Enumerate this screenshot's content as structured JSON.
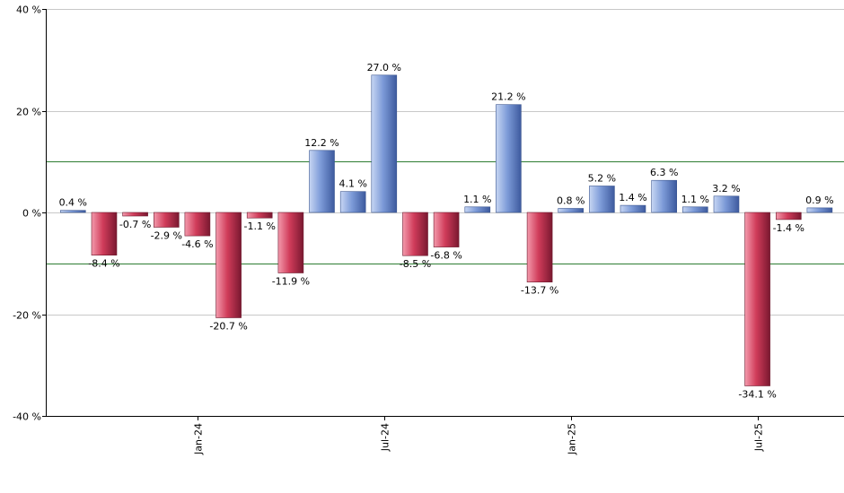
{
  "chart_data": {
    "type": "bar",
    "title": "",
    "xlabel": "",
    "ylabel": "",
    "ylim": [
      -40,
      40
    ],
    "yticks": [
      40,
      20,
      0,
      -20,
      -40
    ],
    "ytick_labels": [
      "40 %",
      "20 %",
      "0 %",
      "-20 %",
      "-40 %"
    ],
    "xtick_labels": [
      {
        "label": "Jan-24",
        "index": 4.5
      },
      {
        "label": "Jul-24",
        "index": 10.5
      },
      {
        "label": "Jan-25",
        "index": 16.5
      },
      {
        "label": "Jul-25",
        "index": 22.5
      }
    ],
    "grid": true,
    "reference_lines": [
      10,
      -10
    ],
    "n_slots": 25,
    "values": [
      0.4,
      -8.4,
      -0.7,
      -2.9,
      -4.6,
      -20.7,
      -1.1,
      -11.9,
      12.2,
      4.1,
      27.0,
      -8.5,
      -6.8,
      1.1,
      21.2,
      -13.7,
      0.8,
      5.2,
      1.4,
      6.3,
      1.1,
      3.2,
      -34.1,
      -1.4,
      0.9
    ],
    "data_labels": [
      "0.4 %",
      "-8.4 %",
      "-0.7 %",
      "-2.9 %",
      "-4.6 %",
      "-20.7 %",
      "-1.1 %",
      "-11.9 %",
      "12.2 %",
      "4.1 %",
      "27.0 %",
      "-8.5 %",
      "-6.8 %",
      "1.1 %",
      "21.2 %",
      "-13.7 %",
      "0.8 %",
      "5.2 %",
      "1.4 %",
      "6.3 %",
      "1.1 %",
      "3.2 %",
      "-34.1 %",
      "-1.4 %",
      "0.9 %"
    ],
    "colors": {
      "positive": "#7a98d6",
      "negative": "#c23a55",
      "grid": "#c8c8c8",
      "reference_line": "#2e7d32",
      "axis": "#000000"
    }
  }
}
